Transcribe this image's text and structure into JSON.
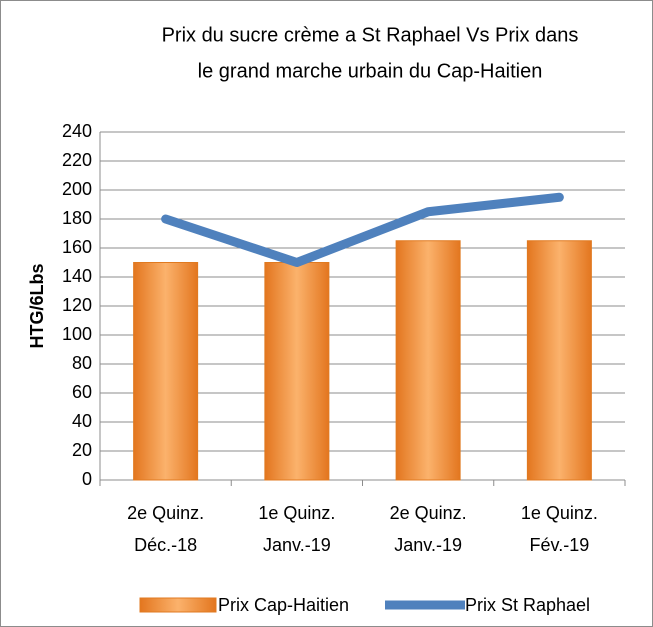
{
  "chart_data": {
    "type": "bar",
    "title": [
      "Prix du sucre crème a St Raphael Vs Prix dans",
      "le grand marche urbain du Cap-Haitien"
    ],
    "y_label": "HTG/6Lbs",
    "categories": [
      [
        "2e Quinz.",
        "Déc.-18"
      ],
      [
        "1e Quinz.",
        "Janv.-19"
      ],
      [
        "2e Quinz.",
        "Janv.-19"
      ],
      [
        "1e Quinz.",
        "Fév.-19"
      ]
    ],
    "series": [
      {
        "name": "Prix Cap-Haitien",
        "type": "bar",
        "color": "#f79646",
        "values": [
          150,
          150,
          165,
          165
        ]
      },
      {
        "name": "Prix St Raphael",
        "type": "line",
        "color": "#4f81bd",
        "values": [
          180,
          150,
          185,
          195
        ]
      }
    ],
    "ylim": [
      0,
      240
    ],
    "yticks": [
      0,
      20,
      40,
      60,
      80,
      100,
      120,
      140,
      160,
      180,
      200,
      220,
      240
    ],
    "grid": true,
    "legend": "bottom"
  }
}
